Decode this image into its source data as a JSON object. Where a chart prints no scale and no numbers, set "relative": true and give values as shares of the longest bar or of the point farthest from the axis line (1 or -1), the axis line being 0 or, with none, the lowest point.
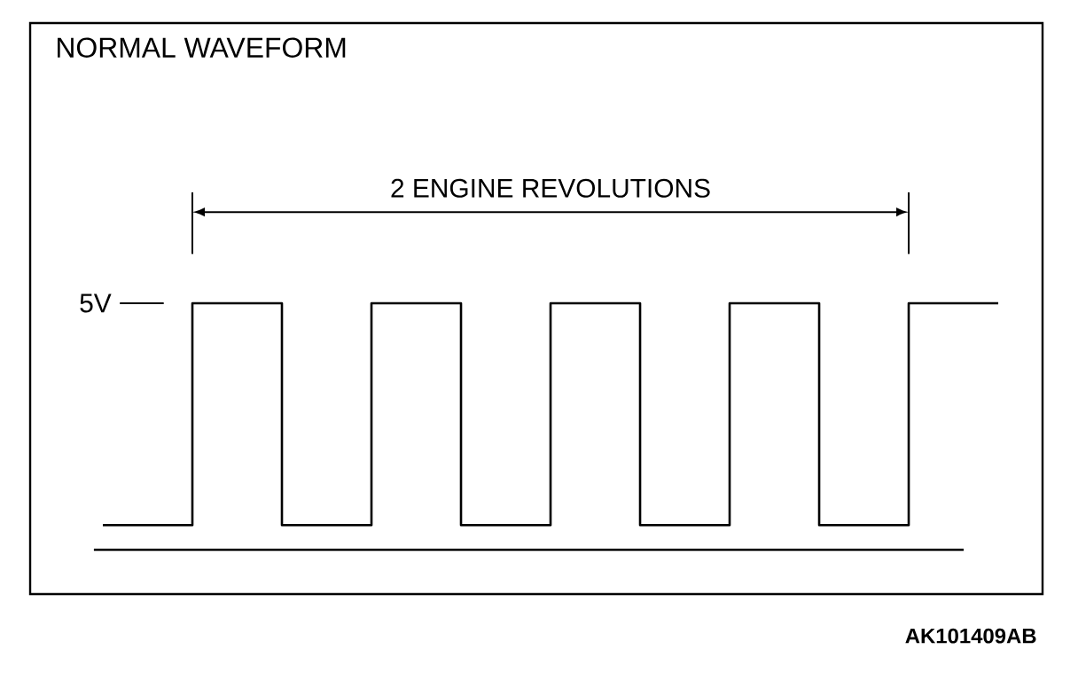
{
  "chart_data": {
    "type": "step",
    "title": "NORMAL WAVEFORM",
    "relative": true,
    "categories": [
      null,
      null,
      null,
      null,
      null,
      null,
      null,
      null,
      null,
      null,
      null
    ],
    "values": [
      0.1,
      1,
      0.1,
      1,
      0.1,
      1,
      0.1,
      1,
      0.1,
      1,
      1
    ],
    "color": "#000000",
    "annotations": [
      "2 ENGINE REVOLUTIONS",
      "5V",
      "AK101409AB"
    ]
  }
}
